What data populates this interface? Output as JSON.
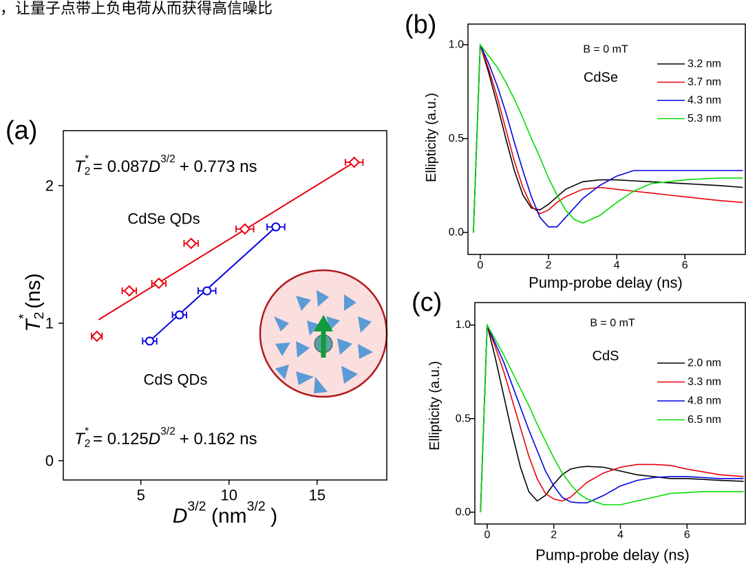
{
  "header_text": "，让量子点带上负电荷从而获得高信噪比",
  "chart_data": [
    {
      "type": "scatter",
      "title": "(a)",
      "x_label": [
        "D",
        "3/2",
        "(nm",
        "3/2",
        ")"
      ],
      "y_label": [
        "T",
        "2",
        "*",
        "(ns)"
      ],
      "xlim": [
        0.6,
        18.95
      ],
      "ylim": [
        -0.14,
        2.4
      ],
      "xticks": [
        5,
        10,
        15
      ],
      "yticks": [
        0,
        1,
        2
      ],
      "series": [
        {
          "name": "CdSe QDs",
          "color": "#e8000b",
          "marker": "diamond",
          "x": [
            2.5,
            4.34,
            6.02,
            7.85,
            10.9,
            17.1
          ],
          "values": [
            0.905,
            1.235,
            1.29,
            1.58,
            1.685,
            2.17
          ],
          "x_err": [
            0.3,
            0.4,
            0.4,
            0.4,
            0.5,
            0.5
          ]
        },
        {
          "name": "CdS QDs",
          "color": "#0000e0",
          "marker": "circle",
          "x": [
            5.5,
            7.19,
            8.75,
            12.66
          ],
          "values": [
            0.87,
            1.06,
            1.235,
            1.7
          ],
          "x_err": [
            0.4,
            0.4,
            0.5,
            0.5
          ]
        }
      ],
      "fits": [
        {
          "color": "#e8000b",
          "x": [
            2.6,
            17.1
          ],
          "values": [
            1.025,
            2.17
          ]
        },
        {
          "color": "#0000e0",
          "x": [
            5.5,
            12.66
          ],
          "values": [
            0.87,
            1.7
          ]
        }
      ],
      "annotations": [
        [
          "T",
          "2",
          "*",
          "= 0.087",
          "D",
          "3/2",
          "+ 0.773 ns"
        ],
        [
          "T",
          "2",
          "*",
          "= 0.125",
          "D",
          "3/2",
          "+ 0.162 ns"
        ]
      ]
    },
    {
      "type": "line",
      "title": "(b)",
      "x_label": "Pump-probe delay (ns)",
      "y_label": "Ellipticity (a.u.)",
      "xlim": [
        -0.36,
        7.77
      ],
      "ylim": [
        -0.117,
        1.11
      ],
      "xticks": [
        0,
        2,
        4,
        6
      ],
      "yticks": [
        {
          "value": 0,
          "label": "0.0"
        },
        0.5,
        {
          "value": 1,
          "label": "1.0"
        }
      ],
      "annotations": [
        "B = 0 mT",
        "CdSe"
      ],
      "x": [
        -0.2,
        0,
        0.25,
        0.5,
        0.75,
        1,
        1.25,
        1.5,
        1.75,
        2,
        2.25,
        2.5,
        2.75,
        3,
        3.5,
        4,
        4.5,
        5,
        5.5,
        6,
        6.5,
        7,
        7.7
      ],
      "series": [
        {
          "name": "3.2 nm",
          "color": "#000000",
          "values": [
            0,
            1,
            0.85,
            0.68,
            0.5,
            0.33,
            0.2,
            0.13,
            0.12,
            0.15,
            0.19,
            0.23,
            0.25,
            0.27,
            0.28,
            0.28,
            0.275,
            0.27,
            0.265,
            0.26,
            0.255,
            0.25,
            0.24
          ]
        },
        {
          "name": "3.7 nm",
          "color": "#e8000b",
          "values": [
            0,
            1,
            0.87,
            0.72,
            0.55,
            0.38,
            0.24,
            0.14,
            0.1,
            0.12,
            0.16,
            0.19,
            0.21,
            0.23,
            0.24,
            0.23,
            0.22,
            0.21,
            0.2,
            0.19,
            0.18,
            0.17,
            0.16
          ]
        },
        {
          "name": "4.3 nm",
          "color": "#0000e0",
          "values": [
            0,
            1,
            0.9,
            0.78,
            0.64,
            0.48,
            0.33,
            0.19,
            0.08,
            0.03,
            0.03,
            0.08,
            0.13,
            0.18,
            0.25,
            0.3,
            0.33,
            0.33,
            0.33,
            0.33,
            0.33,
            0.33,
            0.33
          ]
        },
        {
          "name": "5.3 nm",
          "color": "#00dd00",
          "values": [
            0,
            1,
            0.94,
            0.88,
            0.8,
            0.71,
            0.61,
            0.5,
            0.4,
            0.29,
            0.2,
            0.12,
            0.07,
            0.05,
            0.09,
            0.16,
            0.22,
            0.26,
            0.27,
            0.28,
            0.285,
            0.29,
            0.29
          ]
        }
      ]
    },
    {
      "type": "line",
      "title": "(c)",
      "x_label": "Pump-probe delay (ns)",
      "y_label": "Ellipticity (a.u.)",
      "xlim": [
        -0.37,
        7.75
      ],
      "ylim": [
        -0.063,
        1.12
      ],
      "xticks": [
        0,
        2,
        4,
        6
      ],
      "yticks": [
        {
          "value": 0,
          "label": "0.0"
        },
        0.5,
        {
          "value": 1,
          "label": "1.0"
        }
      ],
      "annotations": [
        "B = 0 mT",
        "CdS"
      ],
      "x": [
        -0.2,
        0,
        0.25,
        0.5,
        0.75,
        1,
        1.25,
        1.5,
        1.75,
        2,
        2.25,
        2.5,
        2.75,
        3,
        3.5,
        4,
        4.5,
        5,
        5.5,
        6,
        6.5,
        7,
        7.7
      ],
      "series": [
        {
          "name": "2.0 nm",
          "color": "#000000",
          "values": [
            0,
            1,
            0.82,
            0.62,
            0.42,
            0.24,
            0.11,
            0.06,
            0.09,
            0.15,
            0.2,
            0.23,
            0.24,
            0.245,
            0.24,
            0.22,
            0.2,
            0.19,
            0.18,
            0.18,
            0.175,
            0.17,
            0.165
          ]
        },
        {
          "name": "3.3 nm",
          "color": "#e8000b",
          "values": [
            0,
            1,
            0.88,
            0.75,
            0.6,
            0.45,
            0.3,
            0.18,
            0.1,
            0.07,
            0.06,
            0.08,
            0.12,
            0.16,
            0.21,
            0.24,
            0.255,
            0.255,
            0.25,
            0.23,
            0.215,
            0.2,
            0.19
          ]
        },
        {
          "name": "4.8 nm",
          "color": "#0000e0",
          "values": [
            0,
            1,
            0.9,
            0.8,
            0.68,
            0.56,
            0.44,
            0.33,
            0.22,
            0.14,
            0.08,
            0.055,
            0.05,
            0.05,
            0.09,
            0.14,
            0.17,
            0.185,
            0.19,
            0.19,
            0.185,
            0.18,
            0.18
          ]
        },
        {
          "name": "6.5 nm",
          "color": "#00dd00",
          "values": [
            0,
            1,
            0.92,
            0.84,
            0.75,
            0.66,
            0.57,
            0.47,
            0.38,
            0.29,
            0.21,
            0.15,
            0.1,
            0.07,
            0.04,
            0.04,
            0.06,
            0.08,
            0.1,
            0.105,
            0.11,
            0.11,
            0.11
          ]
        }
      ]
    }
  ]
}
